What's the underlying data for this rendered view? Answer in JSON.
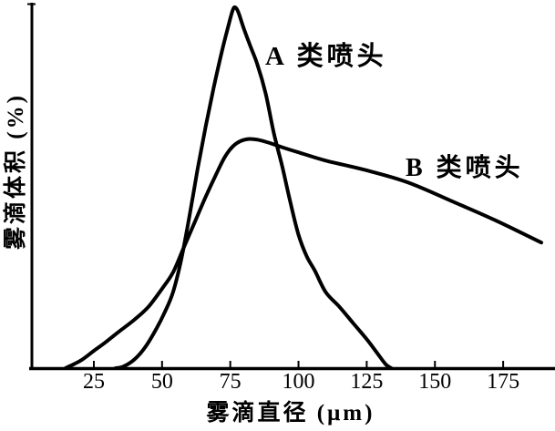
{
  "figure": {
    "background_color": "#ffffff",
    "ink_color": "#000000"
  },
  "chart_data": {
    "type": "line",
    "title": "",
    "xlabel": "雾滴直径 (μm)",
    "ylabel": "雾滴体积 (%)",
    "x_ticks": [
      25,
      50,
      75,
      100,
      125,
      150,
      175
    ],
    "xlim": [
      2.3,
      193
    ],
    "ylim": [
      0,
      100
    ],
    "grid": false,
    "legend_position": "inline-annotations",
    "series": [
      {
        "id": "a-nozzle",
        "name": "A类喷头",
        "label": "A 类喷头",
        "points": [
          [
            33,
            0
          ],
          [
            36,
            0.5
          ],
          [
            40,
            2.5
          ],
          [
            44,
            6
          ],
          [
            48,
            11
          ],
          [
            51,
            15.5
          ],
          [
            54,
            21
          ],
          [
            57,
            30
          ],
          [
            60,
            42
          ],
          [
            63,
            55
          ],
          [
            66,
            67
          ],
          [
            69,
            78
          ],
          [
            72,
            88
          ],
          [
            74,
            94
          ],
          [
            75.8,
            99
          ],
          [
            76.8,
            100
          ],
          [
            78,
            98.5
          ],
          [
            80,
            94
          ],
          [
            82.5,
            89
          ],
          [
            85,
            84
          ],
          [
            88,
            76
          ],
          [
            91,
            65
          ],
          [
            94,
            56
          ],
          [
            97,
            46
          ],
          [
            100,
            37
          ],
          [
            103,
            31
          ],
          [
            106,
            27
          ],
          [
            110,
            21
          ],
          [
            115,
            17
          ],
          [
            120,
            12.5
          ],
          [
            125,
            8
          ],
          [
            129,
            4
          ],
          [
            132,
            1
          ],
          [
            134,
            0
          ]
        ]
      },
      {
        "id": "b-nozzle",
        "name": "B类喷头",
        "label": "B 类喷头",
        "points": [
          [
            14.6,
            0
          ],
          [
            18,
            1.2
          ],
          [
            21,
            2.5
          ],
          [
            25,
            4.8
          ],
          [
            29,
            7
          ],
          [
            34,
            10
          ],
          [
            40,
            13.5
          ],
          [
            45,
            17
          ],
          [
            50,
            22
          ],
          [
            54,
            26.5
          ],
          [
            58,
            33.5
          ],
          [
            62,
            40.5
          ],
          [
            66,
            47.5
          ],
          [
            70,
            54
          ],
          [
            73,
            58.5
          ],
          [
            76,
            61.5
          ],
          [
            79,
            63
          ],
          [
            82,
            63.5
          ],
          [
            85,
            63.3
          ],
          [
            89,
            62.5
          ],
          [
            94,
            61.2
          ],
          [
            100,
            59.8
          ],
          [
            110,
            57.5
          ],
          [
            124,
            55
          ],
          [
            140,
            51.5
          ],
          [
            157,
            46
          ],
          [
            172,
            41
          ],
          [
            189,
            34.8
          ]
        ]
      }
    ]
  }
}
